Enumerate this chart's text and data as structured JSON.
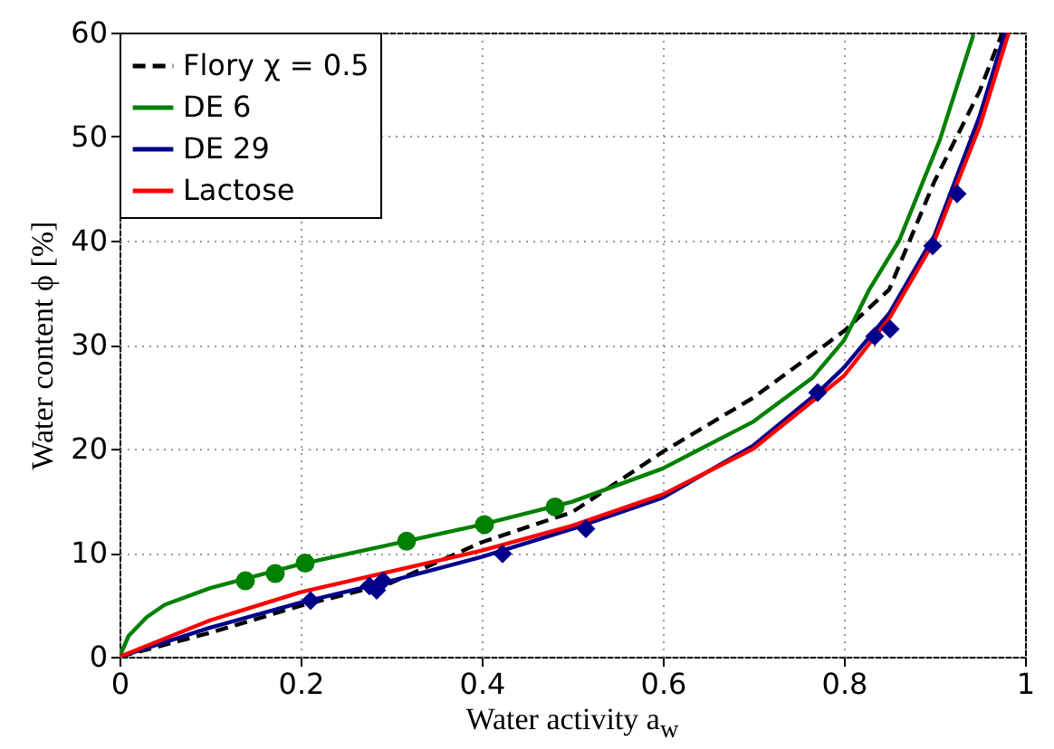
{
  "chart_data": {
    "type": "line",
    "xlabel": "Water activity a$_{w}$",
    "ylabel": "Water content ϕ [%]",
    "xlim": [
      0,
      1
    ],
    "ylim": [
      0,
      60
    ],
    "xticks": [
      0,
      0.2,
      0.4,
      0.6,
      0.8,
      1
    ],
    "yticks": [
      0,
      10,
      20,
      30,
      40,
      50,
      60
    ],
    "grid": true,
    "legend": "top left",
    "marker": "none",
    "series": [
      {
        "name": "Flory χ = 0.5",
        "color": "#000000",
        "line_style": "dashed",
        "x": [
          0,
          0.1,
          0.2,
          0.3,
          0.4,
          0.5,
          0.6,
          0.7,
          0.8,
          0.85,
          0.9,
          0.95,
          0.975
        ],
        "values": [
          0,
          2.3,
          4.9,
          7.1,
          11.0,
          13.9,
          19.7,
          24.9,
          31.3,
          35.3,
          45.7,
          54.4,
          60
        ]
      },
      {
        "name": "DE 6",
        "color": "#008000",
        "line_style": "solid",
        "x": [
          0,
          0.01,
          0.03,
          0.05,
          0.1,
          0.2,
          0.3,
          0.4,
          0.5,
          0.6,
          0.7,
          0.765,
          0.8,
          0.828,
          0.861,
          0.906,
          0.943
        ],
        "values": [
          0,
          2,
          3.8,
          5,
          6.6,
          8.9,
          10.8,
          12.7,
          14.9,
          18.1,
          22.6,
          26.8,
          30.4,
          35.3,
          40.0,
          49.7,
          59.8
        ]
      },
      {
        "name": "DE 29",
        "color": "#00008b",
        "line_style": "solid",
        "x": [
          0,
          0.1,
          0.2,
          0.3,
          0.4,
          0.5,
          0.6,
          0.7,
          0.77,
          0.8,
          0.85,
          0.9,
          0.95,
          0.978
        ],
        "values": [
          0,
          2.8,
          5.2,
          7.3,
          9.6,
          12.3,
          15.3,
          20.3,
          25.3,
          27.8,
          33,
          40.5,
          52,
          60
        ]
      },
      {
        "name": "Lactose",
        "color": "#ff0000",
        "line_style": "solid",
        "x": [
          0,
          0.1,
          0.2,
          0.3,
          0.4,
          0.5,
          0.6,
          0.7,
          0.8,
          0.85,
          0.9,
          0.95,
          0.982
        ],
        "values": [
          0,
          3.5,
          6.2,
          8.2,
          10.2,
          12.6,
          15.6,
          20.0,
          27.0,
          32.5,
          40,
          51,
          60
        ]
      },
      {
        "type": "scatter",
        "marker": "circle",
        "color": "#008000",
        "x": [
          0.139,
          0.172,
          0.205,
          0.317,
          0.403,
          0.481
        ],
        "values": [
          7.3,
          8.0,
          9.0,
          11.1,
          12.7,
          14.4
        ]
      },
      {
        "type": "scatter",
        "marker": "diamond",
        "color": "#00008b",
        "x": [
          0.211,
          0.276,
          0.284,
          0.291,
          0.423,
          0.515,
          0.771,
          0.834,
          0.851,
          0.898,
          0.925
        ],
        "values": [
          5.4,
          6.8,
          6.4,
          7.3,
          9.9,
          12.3,
          25.4,
          30.8,
          31.5,
          39.5,
          44.5
        ]
      }
    ]
  }
}
